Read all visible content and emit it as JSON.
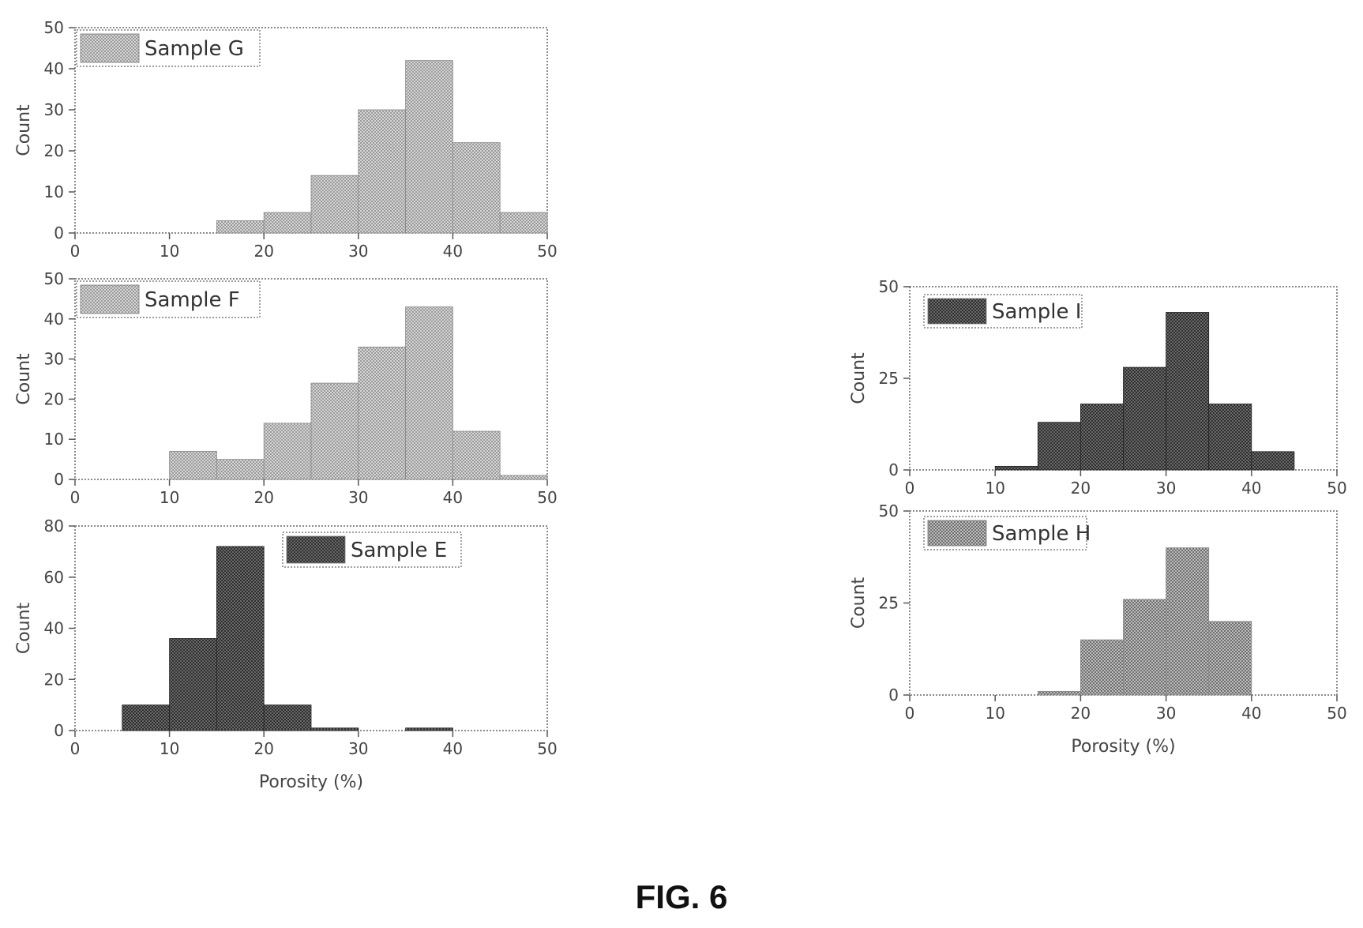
{
  "figure": {
    "caption": "FIG. 6"
  },
  "chart_data": [
    {
      "id": "G",
      "type": "bar",
      "legend": "Sample G",
      "legend_position": "top-left",
      "ylabel": "Count",
      "xlabel": "",
      "xlim": [
        0,
        50
      ],
      "ylim": [
        0,
        50
      ],
      "xticks": [
        0,
        10,
        20,
        30,
        40,
        50
      ],
      "yticks": [
        0,
        10,
        20,
        30,
        40,
        50
      ],
      "bin_width": 5,
      "bins": [
        0,
        5,
        10,
        15,
        20,
        25,
        30,
        35,
        40,
        45
      ],
      "values": [
        0,
        0,
        0,
        3,
        5,
        14,
        30,
        42,
        22,
        5
      ],
      "fill": "light"
    },
    {
      "id": "F",
      "type": "bar",
      "legend": "Sample F",
      "legend_position": "top-left",
      "ylabel": "Count",
      "xlabel": "",
      "xlim": [
        0,
        50
      ],
      "ylim": [
        0,
        50
      ],
      "xticks": [
        0,
        10,
        20,
        30,
        40,
        50
      ],
      "yticks": [
        0,
        10,
        20,
        30,
        40,
        50
      ],
      "bin_width": 5,
      "bins": [
        0,
        5,
        10,
        15,
        20,
        25,
        30,
        35,
        40,
        45
      ],
      "values": [
        0,
        0,
        7,
        5,
        14,
        24,
        33,
        43,
        12,
        1
      ],
      "fill": "light"
    },
    {
      "id": "E",
      "type": "bar",
      "legend": "Sample E",
      "legend_position": "top-center",
      "ylabel": "Count",
      "xlabel": "Porosity (%)",
      "xlim": [
        0,
        50
      ],
      "ylim": [
        0,
        80
      ],
      "xticks": [
        0,
        10,
        20,
        30,
        40,
        50
      ],
      "yticks": [
        0,
        20,
        40,
        60,
        80
      ],
      "bin_width": 5,
      "bins": [
        0,
        5,
        10,
        15,
        20,
        25,
        30,
        35,
        40,
        45
      ],
      "values": [
        0,
        10,
        36,
        72,
        10,
        1,
        0,
        1,
        0,
        0
      ],
      "fill": "dark"
    },
    {
      "id": "I",
      "type": "bar",
      "legend": "Sample I",
      "legend_position": "top-left",
      "ylabel": "Count",
      "xlabel": "",
      "xlim": [
        0,
        50
      ],
      "ylim": [
        0,
        50
      ],
      "xticks": [
        0,
        10,
        20,
        30,
        40,
        50
      ],
      "yticks": [
        0,
        25,
        50
      ],
      "bin_width": 5,
      "bins": [
        0,
        5,
        10,
        15,
        20,
        25,
        30,
        35,
        40,
        45
      ],
      "values": [
        0,
        0,
        1,
        13,
        18,
        28,
        43,
        18,
        5,
        0
      ],
      "fill": "dark"
    },
    {
      "id": "H",
      "type": "bar",
      "legend": "Sample H",
      "legend_position": "top-left",
      "ylabel": "Count",
      "xlabel": "Porosity (%)",
      "xlim": [
        0,
        50
      ],
      "ylim": [
        0,
        50
      ],
      "xticks": [
        0,
        10,
        20,
        30,
        40,
        50
      ],
      "yticks": [
        0,
        25,
        50
      ],
      "bin_width": 5,
      "bins": [
        0,
        5,
        10,
        15,
        20,
        25,
        30,
        35,
        40,
        45
      ],
      "values": [
        0,
        0,
        0,
        1,
        15,
        26,
        40,
        20,
        0,
        0
      ],
      "fill": "medium"
    }
  ],
  "colors": {
    "light_fill": "#c9c9c9",
    "medium_fill": "#a3a3a3",
    "dark_fill": "#3a3a3a",
    "frame": "#555555",
    "text": "#333333"
  }
}
